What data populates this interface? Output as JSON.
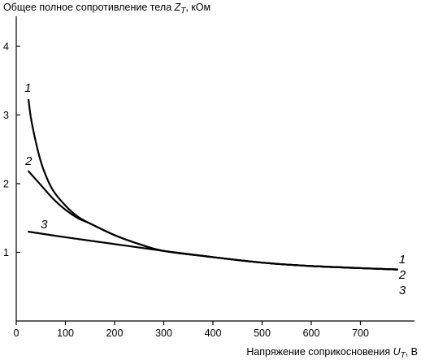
{
  "chart_data": {
    "type": "line",
    "ylabel": {
      "prefix": "Общее полное сопротивление тела ",
      "symbol": "Z",
      "subscript": "T",
      "suffix": ", кОм"
    },
    "xlabel": {
      "prefix": "Напряжение соприкосновения ",
      "symbol": "U",
      "subscript": "T",
      "suffix": ", В"
    },
    "xlim": [
      0,
      800
    ],
    "ylim": [
      0,
      4.5
    ],
    "x_ticks": [
      0,
      100,
      200,
      300,
      400,
      500,
      600,
      700
    ],
    "y_ticks": [
      1,
      2,
      3,
      4
    ],
    "grid": false,
    "series": [
      {
        "name": "1",
        "x": [
          25,
          30,
          40,
          50,
          60,
          75,
          100,
          125,
          150,
          200,
          250,
          300,
          400,
          500,
          600,
          700,
          775
        ],
        "y": [
          3.22,
          2.95,
          2.6,
          2.32,
          2.12,
          1.9,
          1.68,
          1.52,
          1.42,
          1.25,
          1.12,
          1.02,
          0.93,
          0.85,
          0.8,
          0.77,
          0.75
        ]
      },
      {
        "name": "2",
        "x": [
          25,
          50,
          75,
          100,
          125,
          150,
          200,
          250,
          300,
          400,
          500,
          600,
          700,
          775
        ],
        "y": [
          2.18,
          1.98,
          1.78,
          1.62,
          1.5,
          1.42,
          1.25,
          1.12,
          1.02,
          0.93,
          0.85,
          0.8,
          0.77,
          0.75
        ]
      },
      {
        "name": "3",
        "x": [
          25,
          100,
          200,
          300,
          400,
          500,
          600,
          700,
          775
        ],
        "y": [
          1.3,
          1.22,
          1.12,
          1.02,
          0.93,
          0.85,
          0.8,
          0.77,
          0.75
        ]
      }
    ]
  }
}
